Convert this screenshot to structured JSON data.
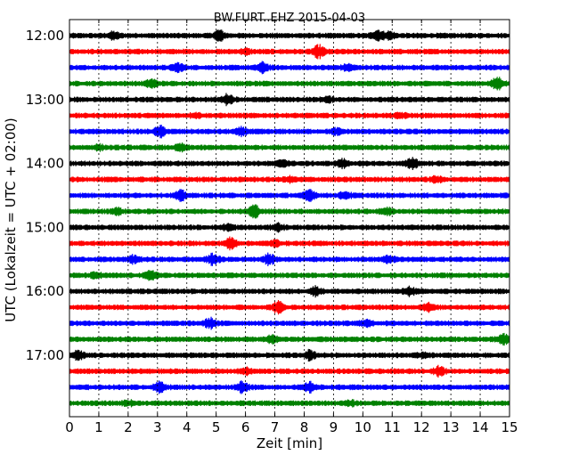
{
  "chart_data": {
    "type": "line",
    "title": "BW.FURT..EHZ 2015-04-03",
    "xlabel": "Zeit  [min]",
    "ylabel": "UTC (Lokalzeit = UTC + 02:00)",
    "xlim": [
      0,
      15
    ],
    "x_ticks": [
      "0",
      "1",
      "2",
      "3",
      "4",
      "5",
      "6",
      "7",
      "8",
      "9",
      "10",
      "11",
      "12",
      "13",
      "14",
      "15"
    ],
    "y_ticks": [
      "12:00",
      "13:00",
      "14:00",
      "15:00",
      "16:00",
      "17:00"
    ],
    "grid": true,
    "colors": [
      "#000000",
      "#ff0000",
      "#0000ff",
      "#008000"
    ],
    "series": [
      {
        "start": "12:00",
        "color": "#000000",
        "events": [
          [
            1.5,
            0.9
          ],
          [
            5.1,
            1.5
          ],
          [
            10.5,
            1.7
          ],
          [
            10.9,
            1.0
          ]
        ]
      },
      {
        "start": "12:15",
        "color": "#ff0000",
        "events": [
          [
            8.5,
            1.8
          ],
          [
            6.0,
            0.6
          ]
        ]
      },
      {
        "start": "12:30",
        "color": "#0000ff",
        "events": [
          [
            3.7,
            1.2
          ],
          [
            6.6,
            1.4
          ],
          [
            9.5,
            0.8
          ]
        ]
      },
      {
        "start": "12:45",
        "color": "#008000",
        "events": [
          [
            2.8,
            1.1
          ],
          [
            14.6,
            1.8
          ]
        ]
      },
      {
        "start": "13:00",
        "color": "#000000",
        "events": [
          [
            5.4,
            1.5
          ],
          [
            8.8,
            0.6
          ]
        ]
      },
      {
        "start": "13:15",
        "color": "#ff0000",
        "events": [
          [
            4.3,
            0.6
          ],
          [
            11.3,
            0.5
          ]
        ]
      },
      {
        "start": "13:30",
        "color": "#0000ff",
        "events": [
          [
            3.1,
            1.5
          ],
          [
            5.9,
            1.1
          ],
          [
            9.1,
            0.7
          ]
        ]
      },
      {
        "start": "13:45",
        "color": "#008000",
        "events": [
          [
            1.0,
            0.6
          ],
          [
            3.8,
            0.8
          ]
        ]
      },
      {
        "start": "14:00",
        "color": "#000000",
        "events": [
          [
            7.3,
            1.0
          ],
          [
            9.3,
            1.1
          ],
          [
            11.7,
            1.6
          ]
        ]
      },
      {
        "start": "14:15",
        "color": "#ff0000",
        "events": [
          [
            7.5,
            0.6
          ],
          [
            12.5,
            0.7
          ]
        ]
      },
      {
        "start": "14:30",
        "color": "#0000ff",
        "events": [
          [
            3.8,
            1.3
          ],
          [
            8.2,
            1.8
          ],
          [
            9.4,
            1.0
          ]
        ]
      },
      {
        "start": "14:45",
        "color": "#008000",
        "events": [
          [
            1.6,
            0.9
          ],
          [
            6.3,
            1.9
          ],
          [
            10.8,
            1.0
          ]
        ]
      },
      {
        "start": "15:00",
        "color": "#000000",
        "events": [
          [
            5.4,
            0.8
          ],
          [
            7.1,
            1.0
          ]
        ]
      },
      {
        "start": "15:15",
        "color": "#ff0000",
        "events": [
          [
            5.5,
            1.6
          ],
          [
            7.0,
            0.7
          ]
        ]
      },
      {
        "start": "15:30",
        "color": "#0000ff",
        "events": [
          [
            2.2,
            1.0
          ],
          [
            4.9,
            1.6
          ],
          [
            6.8,
            1.5
          ],
          [
            10.9,
            0.9
          ]
        ]
      },
      {
        "start": "15:45",
        "color": "#008000",
        "events": [
          [
            2.8,
            1.4
          ],
          [
            0.9,
            0.6
          ]
        ]
      },
      {
        "start": "16:00",
        "color": "#000000",
        "events": [
          [
            8.4,
            1.3
          ],
          [
            11.6,
            1.2
          ]
        ]
      },
      {
        "start": "16:15",
        "color": "#ff0000",
        "events": [
          [
            7.1,
            1.7
          ],
          [
            12.2,
            1.1
          ]
        ]
      },
      {
        "start": "16:30",
        "color": "#0000ff",
        "events": [
          [
            4.8,
            1.4
          ],
          [
            10.1,
            0.9
          ]
        ]
      },
      {
        "start": "16:45",
        "color": "#008000",
        "events": [
          [
            6.9,
            1.1
          ],
          [
            14.8,
            1.3
          ]
        ]
      },
      {
        "start": "17:00",
        "color": "#000000",
        "events": [
          [
            0.3,
            1.3
          ],
          [
            8.2,
            1.4
          ],
          [
            12.1,
            0.7
          ]
        ]
      },
      {
        "start": "17:15",
        "color": "#ff0000",
        "events": [
          [
            6.0,
            0.8
          ],
          [
            12.6,
            1.3
          ]
        ]
      },
      {
        "start": "17:30",
        "color": "#0000ff",
        "events": [
          [
            3.1,
            1.5
          ],
          [
            5.9,
            1.7
          ],
          [
            8.2,
            1.3
          ]
        ]
      },
      {
        "start": "17:45",
        "color": "#008000",
        "events": [
          [
            2.0,
            0.6
          ],
          [
            9.6,
            0.5
          ]
        ]
      }
    ]
  }
}
